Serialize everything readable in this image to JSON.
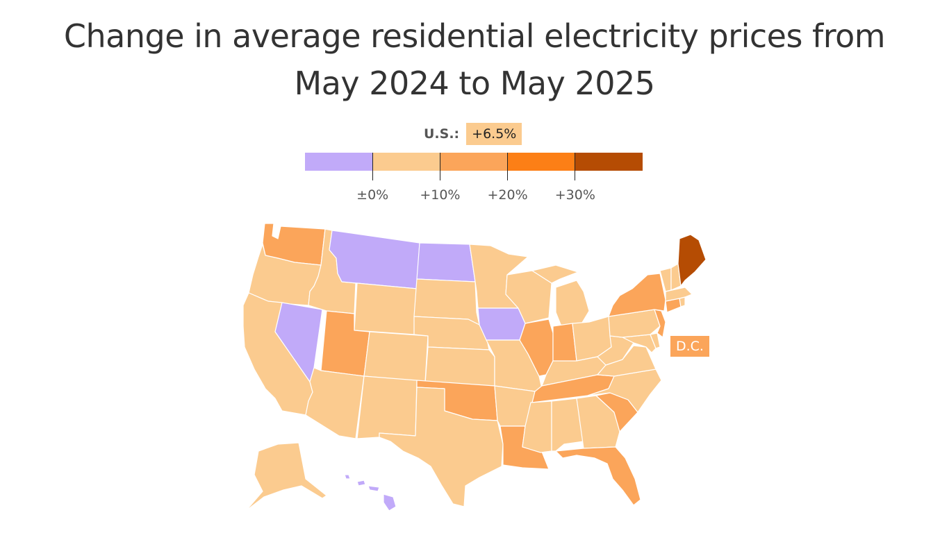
{
  "title": {
    "line1": "Change in average residential electricity prices from",
    "line2": "May 2024 to May 2025"
  },
  "us_summary": {
    "label": "U.S.:",
    "value": "+6.5%"
  },
  "colors": {
    "below_zero": "#c1aaf9",
    "zero_to_10": "#fbcb8f",
    "10_to_20": "#fba55a",
    "20_to_30": "#fc7f16",
    "above_30": "#b54c03"
  },
  "legend": {
    "bins": [
      "below_zero",
      "zero_to_10",
      "10_to_20",
      "20_to_30",
      "above_30"
    ],
    "tick_labels": [
      "±0%",
      "+10%",
      "+20%",
      "+30%"
    ]
  },
  "dc_label": {
    "text": "D.C.",
    "bin": "10_to_20"
  },
  "states": [
    {
      "id": "WA",
      "bin": "10_to_20"
    },
    {
      "id": "OR",
      "bin": "zero_to_10"
    },
    {
      "id": "CA",
      "bin": "zero_to_10"
    },
    {
      "id": "NV",
      "bin": "below_zero"
    },
    {
      "id": "ID",
      "bin": "zero_to_10"
    },
    {
      "id": "MT",
      "bin": "below_zero"
    },
    {
      "id": "WY",
      "bin": "zero_to_10"
    },
    {
      "id": "UT",
      "bin": "10_to_20"
    },
    {
      "id": "AZ",
      "bin": "zero_to_10"
    },
    {
      "id": "CO",
      "bin": "zero_to_10"
    },
    {
      "id": "NM",
      "bin": "zero_to_10"
    },
    {
      "id": "ND",
      "bin": "below_zero"
    },
    {
      "id": "SD",
      "bin": "zero_to_10"
    },
    {
      "id": "NE",
      "bin": "zero_to_10"
    },
    {
      "id": "KS",
      "bin": "zero_to_10"
    },
    {
      "id": "OK",
      "bin": "10_to_20"
    },
    {
      "id": "TX",
      "bin": "zero_to_10"
    },
    {
      "id": "MN",
      "bin": "zero_to_10"
    },
    {
      "id": "IA",
      "bin": "below_zero"
    },
    {
      "id": "MO",
      "bin": "zero_to_10"
    },
    {
      "id": "AR",
      "bin": "zero_to_10"
    },
    {
      "id": "LA",
      "bin": "10_to_20"
    },
    {
      "id": "WI",
      "bin": "zero_to_10"
    },
    {
      "id": "IL",
      "bin": "10_to_20"
    },
    {
      "id": "MI",
      "bin": "zero_to_10"
    },
    {
      "id": "IN",
      "bin": "10_to_20"
    },
    {
      "id": "OH",
      "bin": "zero_to_10"
    },
    {
      "id": "KY",
      "bin": "zero_to_10"
    },
    {
      "id": "TN",
      "bin": "10_to_20"
    },
    {
      "id": "MS",
      "bin": "zero_to_10"
    },
    {
      "id": "AL",
      "bin": "zero_to_10"
    },
    {
      "id": "GA",
      "bin": "zero_to_10"
    },
    {
      "id": "FL",
      "bin": "10_to_20"
    },
    {
      "id": "SC",
      "bin": "10_to_20"
    },
    {
      "id": "NC",
      "bin": "zero_to_10"
    },
    {
      "id": "VA",
      "bin": "zero_to_10"
    },
    {
      "id": "WV",
      "bin": "zero_to_10"
    },
    {
      "id": "MD",
      "bin": "zero_to_10"
    },
    {
      "id": "DE",
      "bin": "zero_to_10"
    },
    {
      "id": "PA",
      "bin": "zero_to_10"
    },
    {
      "id": "NJ",
      "bin": "10_to_20"
    },
    {
      "id": "NY",
      "bin": "10_to_20"
    },
    {
      "id": "CT",
      "bin": "10_to_20"
    },
    {
      "id": "RI",
      "bin": "zero_to_10"
    },
    {
      "id": "MA",
      "bin": "zero_to_10"
    },
    {
      "id": "VT",
      "bin": "zero_to_10"
    },
    {
      "id": "NH",
      "bin": "zero_to_10"
    },
    {
      "id": "ME",
      "bin": "above_30"
    },
    {
      "id": "AK",
      "bin": "zero_to_10"
    },
    {
      "id": "HI",
      "bin": "below_zero"
    }
  ]
}
